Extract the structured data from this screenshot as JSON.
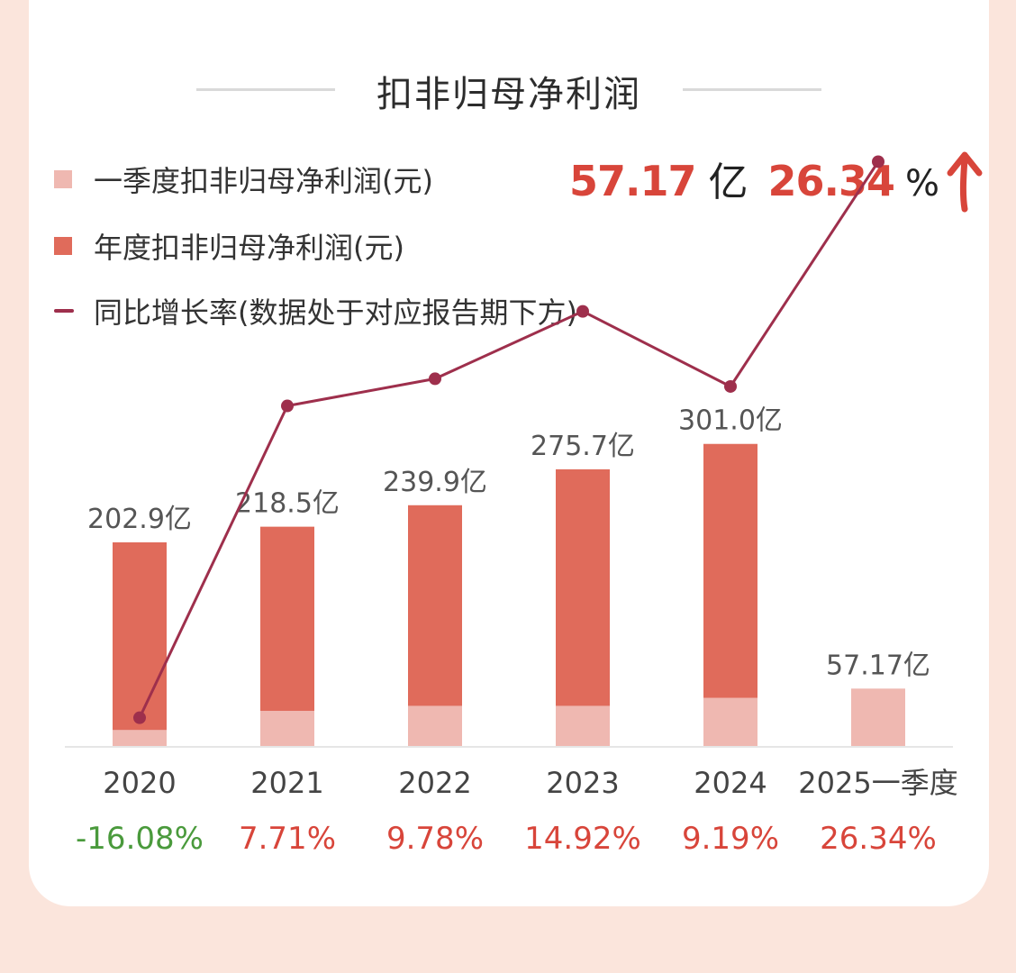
{
  "title": "扣非归母净利润",
  "legend": [
    {
      "label": "一季度扣非归母净利润(元)",
      "color": "#efb8b1",
      "kind": "square"
    },
    {
      "label": "年度扣非归母净利润(元)",
      "color": "#e06b5b",
      "kind": "square"
    },
    {
      "label": "同比增长率(数据处于对应报告期下方)",
      "color": "#9e2f4c",
      "kind": "line"
    }
  ],
  "summary": {
    "value": "57.17",
    "unit": "亿",
    "rate": "26.34",
    "rate_unit": "%"
  },
  "chart_data": {
    "type": "bar",
    "categories": [
      "2020",
      "2021",
      "2022",
      "2023",
      "2024",
      "2025一季度"
    ],
    "series": [
      {
        "name": "年度扣非归母净利润(元)",
        "values": [
          202.9,
          218.5,
          239.9,
          275.7,
          301.0,
          null
        ],
        "color": "#e06b5b"
      },
      {
        "name": "一季度扣非归母净利润(元)",
        "values": [
          16,
          35,
          40,
          40,
          48,
          57.17
        ],
        "color": "#efb8b1"
      },
      {
        "name": "同比增长率(数据处于对应报告期下方)",
        "type": "line",
        "values": [
          -16.08,
          7.71,
          9.78,
          14.92,
          9.19,
          26.34
        ],
        "color": "#9e2f4c"
      }
    ],
    "bar_labels": [
      "202.9亿",
      "218.5亿",
      "239.9亿",
      "275.7亿",
      "301.0亿",
      "57.17亿"
    ],
    "growth_labels": [
      "-16.08%",
      "7.71%",
      "9.78%",
      "14.92%",
      "9.19%",
      "26.34%"
    ],
    "growth_colors": [
      "#4a9a3c",
      "#d8453a",
      "#d8453a",
      "#d8453a",
      "#d8453a",
      "#d8453a"
    ],
    "ylim": [
      0,
      320
    ],
    "rate_lim": [
      -20,
      30
    ]
  }
}
